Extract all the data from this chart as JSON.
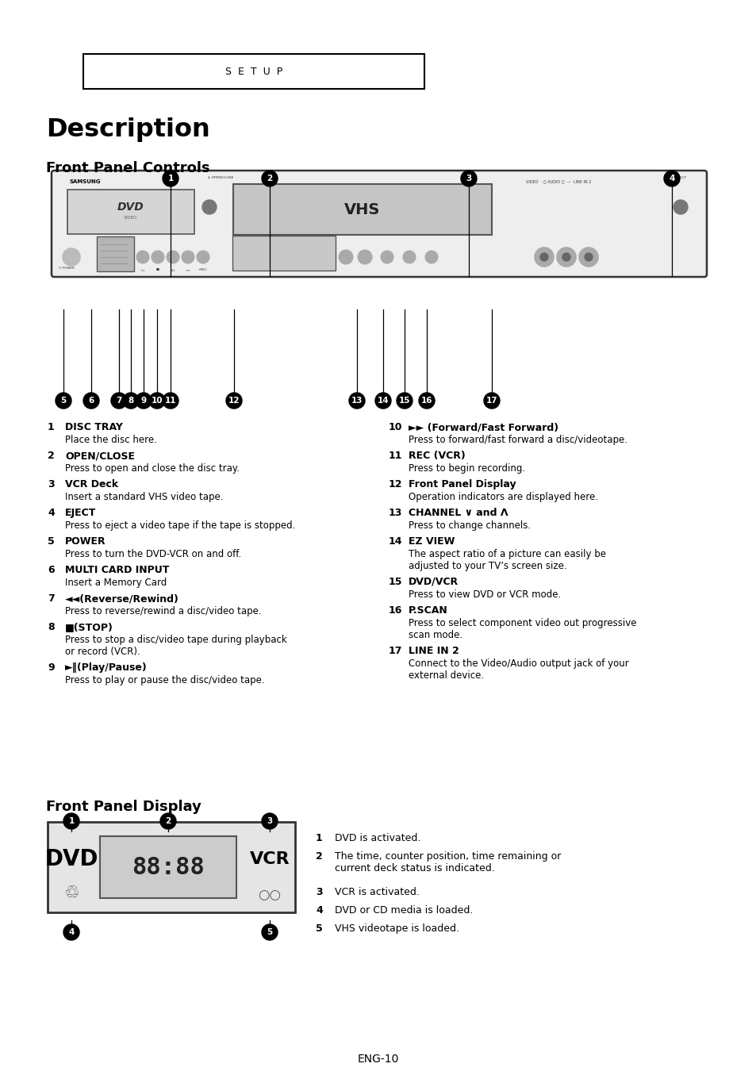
{
  "bg_color": "#ffffff",
  "text_color": "#000000",
  "page_title": "Description",
  "section1_title": "Front Panel Controls",
  "section2_title": "Front Panel Display",
  "footer": "ENG-10",
  "left_items": [
    {
      "num": "1",
      "bold": "DISC TRAY",
      "desc": "Place the disc here."
    },
    {
      "num": "2",
      "bold": "OPEN/CLOSE",
      "desc": "Press to open and close the disc tray."
    },
    {
      "num": "3",
      "bold": "VCR Deck",
      "desc": "Insert a standard VHS video tape."
    },
    {
      "num": "4",
      "bold": "EJECT",
      "desc": "Press to eject a video tape if the tape is stopped."
    },
    {
      "num": "5",
      "bold": "POWER",
      "desc": "Press to turn the DVD-VCR on and off."
    },
    {
      "num": "6",
      "bold": "MULTI CARD INPUT",
      "desc": "Insert a Memory Card"
    },
    {
      "num": "7",
      "bold": "◄◄(Reverse/Rewind)",
      "desc": "Press to reverse/rewind a disc/video tape."
    },
    {
      "num": "8",
      "bold": "■(STOP)",
      "desc": "Press to stop a disc/video tape during playback\nor record (VCR)."
    },
    {
      "num": "9",
      "bold": "►‖(Play/Pause)",
      "desc": "Press to play or pause the disc/video tape."
    }
  ],
  "right_items": [
    {
      "num": "10",
      "bold": "►► (Forward/Fast Forward)",
      "desc": "Press to forward/fast forward a disc/videotape."
    },
    {
      "num": "11",
      "bold": "REC (VCR)",
      "desc": "Press to begin recording."
    },
    {
      "num": "12",
      "bold": "Front Panel Display",
      "desc": "Operation indicators are displayed here."
    },
    {
      "num": "13",
      "bold": "CHANNEL ∨ and Λ",
      "desc": "Press to change channels."
    },
    {
      "num": "14",
      "bold": "EZ VIEW",
      "desc": "The aspect ratio of a picture can easily be\nadjusted to your TV’s screen size."
    },
    {
      "num": "15",
      "bold": "DVD/VCR",
      "desc": "Press to view DVD or VCR mode."
    },
    {
      "num": "16",
      "bold": "P.SCAN",
      "desc": "Press to select component video out progressive\nscan mode."
    },
    {
      "num": "17",
      "bold": "LINE IN 2",
      "desc": "Connect to the Video/Audio output jack of your\nexternal device."
    }
  ],
  "display_items": [
    {
      "num": "1",
      "desc": "DVD is activated."
    },
    {
      "num": "2",
      "desc": "The time, counter position, time remaining or\ncurrent deck status is indicated."
    },
    {
      "num": "3",
      "desc": "VCR is activated."
    },
    {
      "num": "4",
      "desc": "DVD or CD media is loaded."
    },
    {
      "num": "5",
      "desc": "VHS videotape is loaded."
    }
  ]
}
